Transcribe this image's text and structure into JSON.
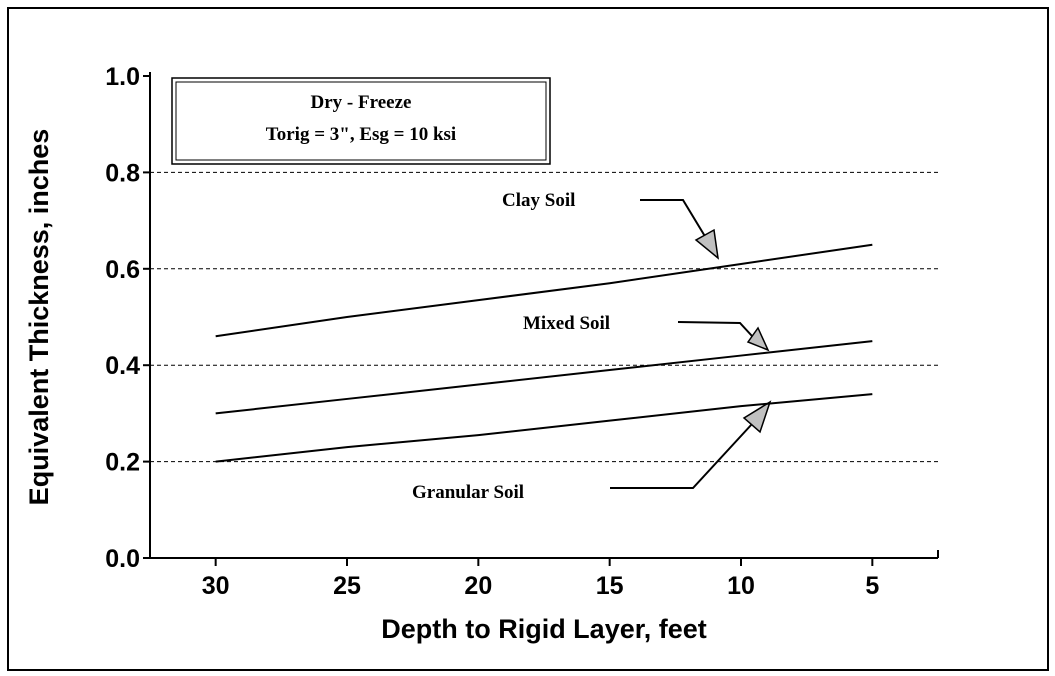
{
  "chart_data": {
    "type": "line",
    "ylabel": "Equivalent Thickness, inches",
    "xlabel": "Depth to Rigid Layer, feet",
    "annotations": [
      "Dry - Freeze",
      "Torig = 3\", Esg = 10 ksi"
    ],
    "x": [
      30,
      25,
      20,
      15,
      10,
      5
    ],
    "series": [
      {
        "name": "Clay Soil",
        "color": "#000000",
        "values": [
          0.46,
          0.5,
          0.535,
          0.57,
          0.61,
          0.65
        ]
      },
      {
        "name": "Mixed Soil",
        "color": "#000000",
        "values": [
          0.3,
          0.33,
          0.36,
          0.39,
          0.42,
          0.45
        ]
      },
      {
        "name": "Granular Soil",
        "color": "#000000",
        "values": [
          0.2,
          0.23,
          0.255,
          0.285,
          0.315,
          0.34
        ]
      }
    ],
    "xlim": [
      32.5,
      2.5
    ],
    "xticks": [
      30,
      25,
      20,
      15,
      10,
      5
    ],
    "ylim": [
      0,
      1
    ],
    "yticks": [
      {
        "value": 0,
        "label": "0.0"
      },
      0.2,
      0.4,
      0.6,
      0.8,
      {
        "value": 1,
        "label": "1.0"
      }
    ],
    "grid": true
  }
}
